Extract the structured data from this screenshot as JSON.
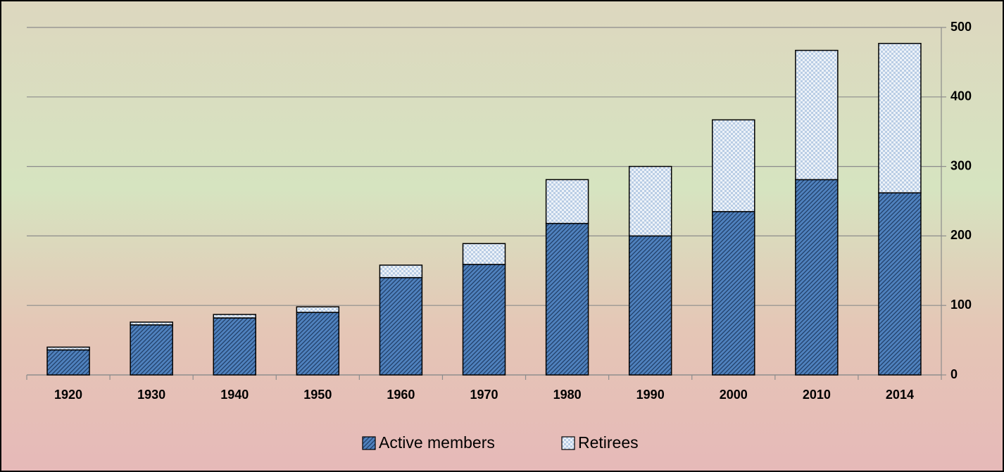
{
  "chart_data": {
    "type": "stacked_bar",
    "categories": [
      "1920",
      "1930",
      "1940",
      "1950",
      "1960",
      "1970",
      "1980",
      "1990",
      "2000",
      "2010",
      "2014"
    ],
    "series": [
      {
        "name": "Active members",
        "color": "#4f81bd",
        "values": [
          36,
          72,
          82,
          90,
          140,
          159,
          218,
          200,
          235,
          281,
          262
        ]
      },
      {
        "name": "Retirees",
        "color": "#b9cde5",
        "values": [
          4,
          4,
          5,
          8,
          18,
          30,
          63,
          100,
          132,
          186,
          215
        ]
      }
    ],
    "ylim": [
      0,
      500
    ],
    "yticks": [
      0,
      100,
      200,
      300,
      400,
      500
    ],
    "yaxis_position": "right",
    "grid": true,
    "legend": "bottom"
  }
}
